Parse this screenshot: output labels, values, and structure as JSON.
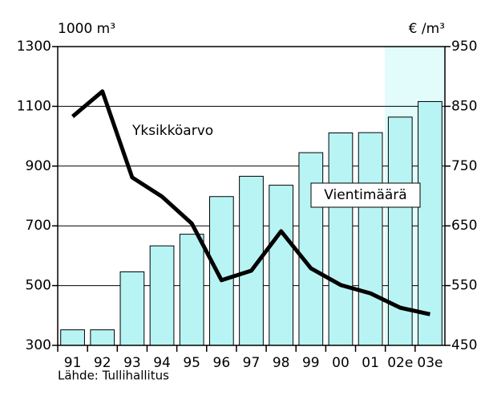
{
  "chart_data": {
    "type": "bar-line",
    "y_label": "1000 m³",
    "y2_label": "€ /m³",
    "categories": [
      "91",
      "92",
      "93",
      "94",
      "95",
      "96",
      "97",
      "98",
      "99",
      "00",
      "01",
      "02e",
      "03e"
    ],
    "series": [
      {
        "name": "Vientimäärä",
        "type": "bar",
        "color": "#b8f4f4",
        "values": [
          352,
          352,
          546,
          633,
          672,
          798,
          866,
          836,
          945,
          1011,
          1012,
          1064,
          1116
        ]
      },
      {
        "name": "Yksikköarvo",
        "type": "line",
        "axis": "y2",
        "color": "#000000",
        "values": [
          833,
          875,
          731,
          699,
          654,
          559,
          575,
          641,
          579,
          551,
          537,
          513,
          502
        ]
      }
    ],
    "ylim": [
      300,
      1300
    ],
    "yticks": [
      300,
      500,
      700,
      900,
      1100,
      1300
    ],
    "y2lim": [
      450,
      950
    ],
    "y2ticks": [
      450,
      550,
      650,
      750,
      850,
      950
    ],
    "grid": true,
    "source": "Lähde: Tullihallitus"
  }
}
